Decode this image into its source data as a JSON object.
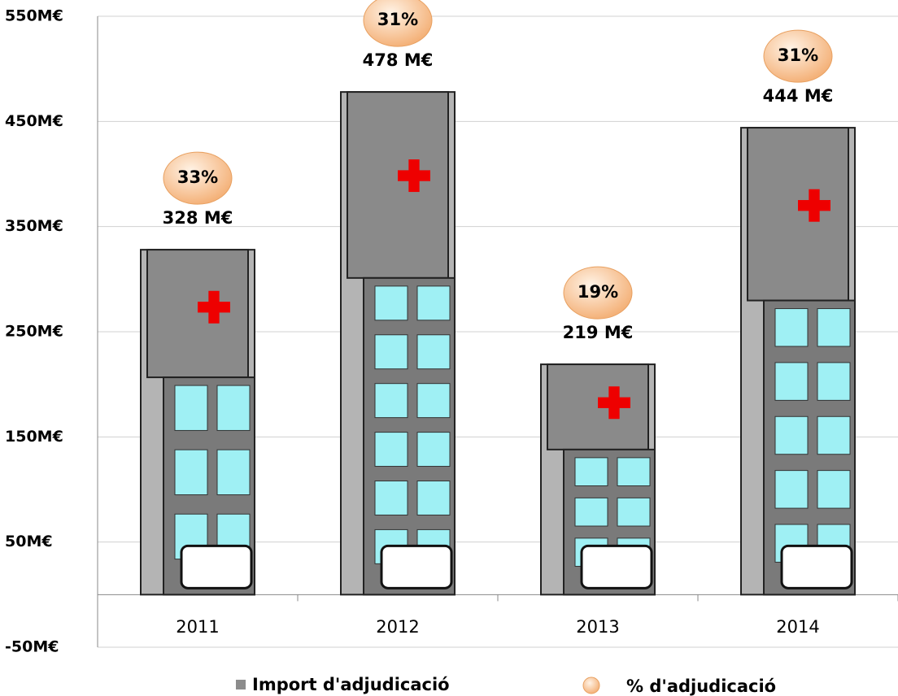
{
  "chart_data": {
    "type": "bar",
    "categories": [
      "2011",
      "2012",
      "2013",
      "2014"
    ],
    "series": [
      {
        "name": "Import d'adjudicació",
        "color": "#8c8c8c",
        "values": [
          328,
          478,
          219,
          444
        ],
        "value_labels": [
          "328 M€",
          "478 M€",
          "219 M€",
          "444 M€"
        ]
      },
      {
        "name": "% d'adjudicació",
        "color": "#f9c89a",
        "values": [
          33,
          31,
          19,
          31
        ],
        "value_labels": [
          "33%",
          "31%",
          "19%",
          "31%"
        ]
      }
    ],
    "ylim": [
      -50,
      550
    ],
    "yticks": [
      {
        "value": -50,
        "label": "-50M€"
      },
      {
        "value": 50,
        "label": "50M€"
      },
      {
        "value": 150,
        "label": "150M€"
      },
      {
        "value": 250,
        "label": "250M€"
      },
      {
        "value": 350,
        "label": "350M€"
      },
      {
        "value": 450,
        "label": "450M€"
      },
      {
        "value": 550,
        "label": "550M€"
      }
    ],
    "grid": true
  }
}
